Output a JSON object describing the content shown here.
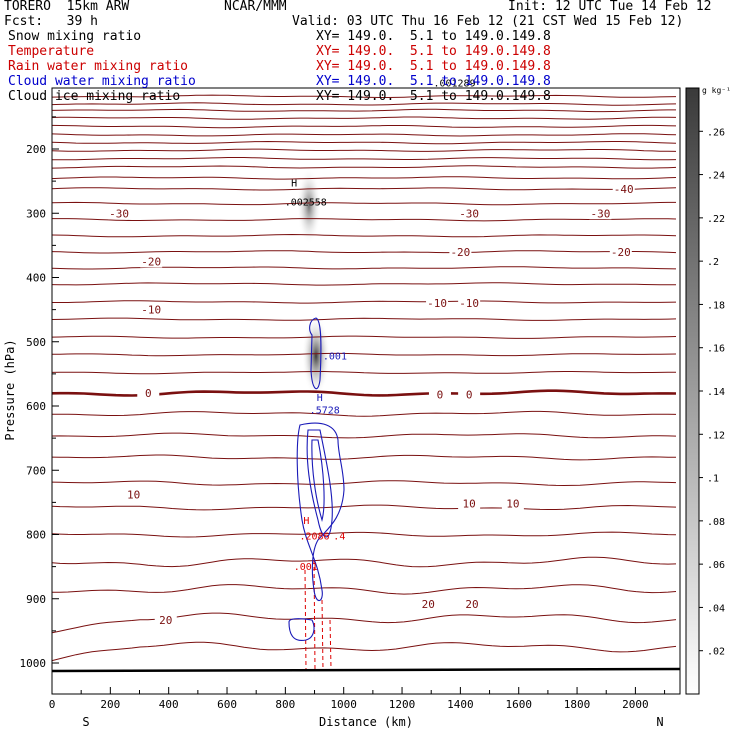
{
  "header": {
    "model": "TORERO  15km ARW",
    "center": "NCAR/MMM",
    "init": "Init: 12 UTC Tue 14 Feb 12",
    "fcst": "Fcst:   39 h",
    "valid": "Valid: 03 UTC Thu 16 Feb 12 (21 CST Wed 15 Feb 12)"
  },
  "fields": [
    {
      "name": "Snow mixing ratio",
      "xy": "XY= 149.0.  5.1 to 149.0.149.8",
      "color": "#000000"
    },
    {
      "name": "Temperature",
      "xy": "XY= 149.0.  5.1 to 149.0.149.8",
      "color": "#cc0000"
    },
    {
      "name": "Rain water mixing ratio",
      "xy": "XY= 149.0.  5.1 to 149.0.149.8",
      "color": "#cc0000"
    },
    {
      "name": "Cloud water mixing ratio",
      "xy": "XY= 149.0.  5.1 to 149.0.149.8",
      "color": "#0000cc"
    },
    {
      "name": "Cloud ice mixing ratio",
      "xy": "XY= 149.0.  5.1 to 149.0.149.8",
      "color": "#000000"
    }
  ],
  "colors": {
    "temperature": "#7a1010",
    "rain": "#dd0000",
    "cloud_water": "#1a1ab8",
    "snow": "#555555"
  },
  "chart_data": {
    "type": "heatmap",
    "xlabel": "Distance (km)",
    "ylabel": "Pressure (hPa)",
    "xlim": [
      0,
      2160
    ],
    "ylim": [
      1000,
      100
    ],
    "x_ticks": [
      0,
      200,
      400,
      600,
      800,
      1000,
      1200,
      1400,
      1600,
      1800,
      2000
    ],
    "y_ticks": [
      200,
      300,
      400,
      500,
      600,
      700,
      800,
      900,
      1000
    ],
    "direction_left": "S",
    "direction_right": "N",
    "colorbar": {
      "unit": "g kg⁻¹",
      "ticks": [
        0.26,
        0.24,
        0.22,
        0.2,
        0.18,
        0.16,
        0.14,
        0.12,
        0.1,
        0.08,
        0.06,
        0.04,
        0.02
      ],
      "tick_labels": [
        ".26",
        ".24",
        ".22",
        ".2",
        ".18",
        ".16",
        ".14",
        ".12",
        ".1",
        ".08",
        ".06",
        ".04",
        ".02"
      ],
      "range": [
        0,
        0.28
      ]
    },
    "temperature_contours": [
      {
        "p": 118,
        "label": ""
      },
      {
        "p": 130,
        "label": ""
      },
      {
        "p": 140,
        "label": ""
      },
      {
        "p": 152,
        "label": ""
      },
      {
        "p": 165,
        "label": ""
      },
      {
        "p": 178,
        "label": ""
      },
      {
        "p": 190,
        "label": ""
      },
      {
        "p": 202,
        "label": ""
      },
      {
        "p": 215,
        "label": ""
      },
      {
        "p": 228,
        "label": ""
      },
      {
        "p": 245,
        "label": ""
      },
      {
        "p": 262,
        "label": ""
      },
      {
        "p": 285,
        "label": "-30"
      },
      {
        "p": 310,
        "label": ""
      },
      {
        "p": 335,
        "label": ""
      },
      {
        "p": 360,
        "label": "-20"
      },
      {
        "p": 385,
        "label": ""
      },
      {
        "p": 410,
        "label": ""
      },
      {
        "p": 438,
        "label": "-10"
      },
      {
        "p": 465,
        "label": ""
      },
      {
        "p": 493,
        "label": ""
      },
      {
        "p": 520,
        "label": ""
      },
      {
        "p": 548,
        "label": ""
      },
      {
        "p": 580,
        "label": "0"
      },
      {
        "p": 612,
        "label": ""
      },
      {
        "p": 646,
        "label": ""
      },
      {
        "p": 680,
        "label": ""
      },
      {
        "p": 720,
        "label": "10"
      },
      {
        "p": 758,
        "label": ""
      },
      {
        "p": 800,
        "label": ""
      },
      {
        "p": 843,
        "label": ""
      },
      {
        "p": 885,
        "label": "20"
      },
      {
        "p": 930,
        "label": ""
      },
      {
        "p": 975,
        "label": ""
      }
    ],
    "contour_labels": [
      {
        "text": "-40",
        "x": 1960,
        "p": 262
      },
      {
        "text": "-30",
        "x": 230,
        "p": 300
      },
      {
        "text": "-30",
        "x": 1430,
        "p": 300
      },
      {
        "text": "-30",
        "x": 1880,
        "p": 300
      },
      {
        "text": "-20",
        "x": 340,
        "p": 375
      },
      {
        "text": "-20",
        "x": 1400,
        "p": 360
      },
      {
        "text": "-20",
        "x": 1950,
        "p": 360
      },
      {
        "text": "-10",
        "x": 340,
        "p": 450
      },
      {
        "text": "-10",
        "x": 1320,
        "p": 440
      },
      {
        "text": "-10",
        "x": 1430,
        "p": 440
      },
      {
        "text": "0",
        "x": 330,
        "p": 580
      },
      {
        "text": "0",
        "x": 1330,
        "p": 582
      },
      {
        "text": "0",
        "x": 1430,
        "p": 582
      },
      {
        "text": "10",
        "x": 280,
        "p": 738
      },
      {
        "text": "10",
        "x": 1430,
        "p": 752
      },
      {
        "text": "10",
        "x": 1580,
        "p": 752
      },
      {
        "text": "20",
        "x": 390,
        "p": 933
      },
      {
        "text": "20",
        "x": 1290,
        "p": 908
      },
      {
        "text": "20",
        "x": 1440,
        "p": 908
      }
    ],
    "annotations": [
      {
        "text": "H",
        "x": 830,
        "p": 258,
        "color": "#000000"
      },
      {
        "text": ".002558",
        "x": 870,
        "p": 288,
        "color": "#000000"
      },
      {
        "text": ".001289",
        "x": 1380,
        "p": 103,
        "color": "#000000"
      },
      {
        "text": ".001",
        "x": 970,
        "p": 528,
        "color": "#1a1ab8"
      },
      {
        "text": "H",
        "x": 918,
        "p": 592,
        "color": "#1a1ab8"
      },
      {
        "text": ".5728",
        "x": 935,
        "p": 612,
        "color": "#1a1ab8"
      },
      {
        "text": ".2086",
        "x": 900,
        "p": 808,
        "color": "#dd0000"
      },
      {
        "text": ".4",
        "x": 985,
        "p": 808,
        "color": "#dd0000"
      },
      {
        "text": ".001",
        "x": 870,
        "p": 855,
        "color": "#dd0000"
      },
      {
        "text": "H",
        "x": 872,
        "p": 784,
        "color": "#dd0000"
      }
    ]
  }
}
